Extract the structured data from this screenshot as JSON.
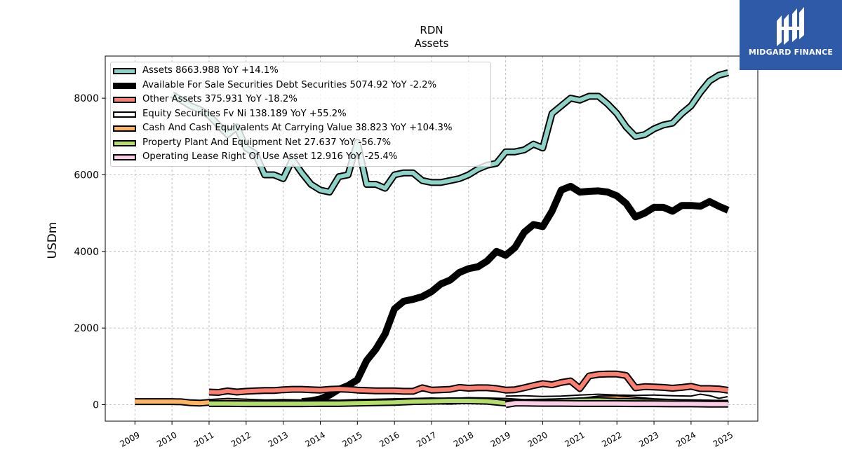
{
  "title": "RDN",
  "subtitle": "Assets",
  "brand": {
    "name": "MIDGARD FINANCE",
    "color": "#2f5aa8"
  },
  "chart_data": {
    "type": "line",
    "title": "RDN",
    "subtitle": "Assets",
    "xlabel": "",
    "ylabel": "USDm",
    "xlim": [
      2008.2,
      2025.8
    ],
    "ylim": [
      -430,
      9100
    ],
    "x_ticks": [
      "2009",
      "2010",
      "2011",
      "2012",
      "2013",
      "2014",
      "2015",
      "2016",
      "2017",
      "2018",
      "2019",
      "2020",
      "2021",
      "2022",
      "2023",
      "2024",
      "2025"
    ],
    "y_ticks": [
      "0",
      "2000",
      "4000",
      "6000",
      "8000"
    ],
    "grid": true,
    "legend_position": "top-left",
    "series": [
      {
        "name": "Assets",
        "label": "Assets  8663.988 YoY +14.1%",
        "color": "#8dd3c7",
        "x": [
          2010.0,
          2010.25,
          2010.5,
          2010.75,
          2011.0,
          2011.25,
          2011.5,
          2011.75,
          2012.0,
          2012.25,
          2012.5,
          2012.75,
          2013.0,
          2013.25,
          2013.5,
          2013.75,
          2014.0,
          2014.25,
          2014.5,
          2014.75,
          2015.0,
          2015.25,
          2015.5,
          2015.75,
          2016.0,
          2016.25,
          2016.5,
          2016.75,
          2017.0,
          2017.25,
          2017.5,
          2017.75,
          2018.0,
          2018.25,
          2018.5,
          2018.75,
          2019.0,
          2019.25,
          2019.5,
          2019.75,
          2020.0,
          2020.25,
          2020.5,
          2020.75,
          2021.0,
          2021.25,
          2021.5,
          2021.75,
          2022.0,
          2022.25,
          2022.5,
          2022.75,
          2023.0,
          2023.25,
          2023.5,
          2023.75,
          2024.0,
          2024.25,
          2024.5,
          2024.75,
          2025.0
        ],
        "values": [
          8100,
          7950,
          7800,
          7700,
          7550,
          7300,
          7050,
          7250,
          6700,
          6550,
          6000,
          6000,
          5900,
          6400,
          6050,
          5750,
          5600,
          5550,
          5950,
          6000,
          6850,
          5750,
          5750,
          5650,
          6000,
          6050,
          6050,
          5850,
          5800,
          5800,
          5850,
          5900,
          6000,
          6150,
          6250,
          6300,
          6600,
          6600,
          6650,
          6800,
          6700,
          7600,
          7800,
          8000,
          7950,
          8050,
          8050,
          7850,
          7600,
          7250,
          7000,
          7050,
          7200,
          7300,
          7350,
          7600,
          7800,
          8150,
          8450,
          8600,
          8664
        ]
      },
      {
        "name": "Available For Sale Securities Debt Securities",
        "label": "Available For Sale Securities Debt Securities  5074.92 YoY -2.2%",
        "color": "#000000",
        "x": [
          2013.5,
          2013.75,
          2014.0,
          2014.25,
          2014.5,
          2014.75,
          2015.0,
          2015.25,
          2015.5,
          2015.75,
          2016.0,
          2016.25,
          2016.5,
          2016.75,
          2017.0,
          2017.25,
          2017.5,
          2017.75,
          2018.0,
          2018.25,
          2018.5,
          2018.75,
          2019.0,
          2019.25,
          2019.5,
          2019.75,
          2020.0,
          2020.25,
          2020.5,
          2020.75,
          2021.0,
          2021.25,
          2021.5,
          2021.75,
          2022.0,
          2022.25,
          2022.5,
          2022.75,
          2023.0,
          2023.25,
          2023.5,
          2023.75,
          2024.0,
          2024.25,
          2024.5,
          2024.75,
          2025.0
        ],
        "values": [
          80,
          100,
          150,
          250,
          400,
          500,
          650,
          1150,
          1450,
          1850,
          2500,
          2700,
          2750,
          2820,
          2950,
          3150,
          3250,
          3450,
          3550,
          3600,
          3750,
          4000,
          3900,
          4100,
          4500,
          4700,
          4650,
          5050,
          5600,
          5700,
          5550,
          5570,
          5580,
          5550,
          5450,
          5250,
          4900,
          5000,
          5150,
          5150,
          5050,
          5200,
          5200,
          5180,
          5300,
          5180,
          5075
        ]
      },
      {
        "name": "Other Assets",
        "label": "Other Assets  375.931 YoY -18.2%",
        "color": "#fb8072",
        "x": [
          2011.0,
          2011.25,
          2011.5,
          2011.75,
          2012.0,
          2012.25,
          2012.5,
          2012.75,
          2013.0,
          2013.25,
          2013.5,
          2013.75,
          2014.0,
          2014.25,
          2014.5,
          2014.75,
          2015.0,
          2015.25,
          2015.5,
          2015.75,
          2016.0,
          2016.25,
          2016.5,
          2016.75,
          2017.0,
          2017.25,
          2017.5,
          2017.75,
          2018.0,
          2018.25,
          2018.5,
          2018.75,
          2019.0,
          2019.25,
          2019.5,
          2019.75,
          2020.0,
          2020.25,
          2020.5,
          2020.75,
          2021.0,
          2021.25,
          2021.5,
          2021.75,
          2022.0,
          2022.25,
          2022.5,
          2022.75,
          2023.0,
          2023.25,
          2023.5,
          2023.75,
          2024.0,
          2024.25,
          2024.5,
          2024.75,
          2025.0
        ],
        "values": [
          330,
          320,
          360,
          330,
          350,
          360,
          370,
          370,
          390,
          400,
          400,
          390,
          380,
          400,
          410,
          400,
          380,
          370,
          360,
          360,
          360,
          350,
          350,
          440,
          380,
          390,
          400,
          450,
          430,
          440,
          440,
          420,
          380,
          390,
          440,
          500,
          550,
          520,
          580,
          620,
          420,
          750,
          790,
          800,
          800,
          760,
          440,
          470,
          460,
          450,
          430,
          450,
          480,
          420,
          420,
          410,
          376
        ]
      },
      {
        "name": "Equity Securities Fv Ni",
        "label": "Equity Securities Fv Ni  138.189 YoY +55.2%",
        "color": "#ffffff",
        "x": [
          2019.0,
          2019.5,
          2020.0,
          2020.5,
          2021.0,
          2021.5,
          2022.0,
          2022.5,
          2023.0,
          2023.5,
          2024.0,
          2024.25,
          2024.5,
          2024.75,
          2025.0
        ],
        "values": [
          150,
          160,
          140,
          150,
          180,
          200,
          180,
          170,
          180,
          160,
          150,
          200,
          160,
          90,
          138
        ]
      },
      {
        "name": "Cash And Cash Equivalents At Carrying Value",
        "label": "Cash And Cash Equivalents At Carrying Value  38.823 YoY +104.3%",
        "color": "#fdb462",
        "x": [
          2009.0,
          2009.5,
          2010.0,
          2010.25,
          2010.5,
          2010.75,
          2011.0,
          2011.5,
          2012.0,
          2012.5,
          2013.0,
          2013.5,
          2014.0,
          2014.5,
          2015.0,
          2015.5,
          2016.0,
          2016.5,
          2017.0,
          2017.5,
          2018.0,
          2018.5,
          2019.0,
          2019.5,
          2020.0,
          2020.5,
          2021.0,
          2021.5,
          2022.0,
          2022.5,
          2023.0,
          2023.5,
          2024.0,
          2024.5,
          2025.0
        ],
        "values": [
          80,
          80,
          80,
          75,
          50,
          40,
          60,
          90,
          70,
          50,
          60,
          50,
          60,
          40,
          60,
          70,
          80,
          90,
          100,
          90,
          110,
          100,
          90,
          60,
          70,
          80,
          90,
          150,
          160,
          120,
          80,
          60,
          50,
          40,
          39
        ]
      },
      {
        "name": "Property Plant And Equipment Net",
        "label": "Property Plant And Equipment Net  27.637 YoY -56.7%",
        "color": "#b3de69",
        "x": [
          2011.0,
          2011.5,
          2012.0,
          2012.5,
          2013.0,
          2013.5,
          2014.0,
          2014.5,
          2015.0,
          2015.5,
          2016.0,
          2016.5,
          2017.0,
          2017.5,
          2018.0,
          2018.5,
          2019.0,
          2019.5,
          2020.0,
          2020.5,
          2021.0,
          2021.5,
          2022.0,
          2022.5,
          2023.0,
          2023.5,
          2024.0,
          2024.5,
          2025.0
        ],
        "values": [
          30,
          30,
          25,
          25,
          25,
          25,
          30,
          30,
          40,
          50,
          60,
          80,
          90,
          100,
          100,
          90,
          40,
          50,
          60,
          80,
          100,
          110,
          90,
          80,
          70,
          60,
          50,
          40,
          28
        ]
      },
      {
        "name": "Operating Lease Right Of Use Asset",
        "label": "Operating Lease Right Of Use Asset  12.916 YoY -25.4%",
        "color": "#fccde5",
        "x": [
          2019.0,
          2019.25,
          2019.5,
          2020.0,
          2020.5,
          2021.0,
          2021.5,
          2022.0,
          2022.5,
          2023.0,
          2023.5,
          2024.0,
          2024.5,
          2025.0
        ],
        "values": [
          0,
          40,
          40,
          35,
          35,
          30,
          30,
          30,
          25,
          25,
          20,
          20,
          15,
          13
        ]
      }
    ]
  }
}
